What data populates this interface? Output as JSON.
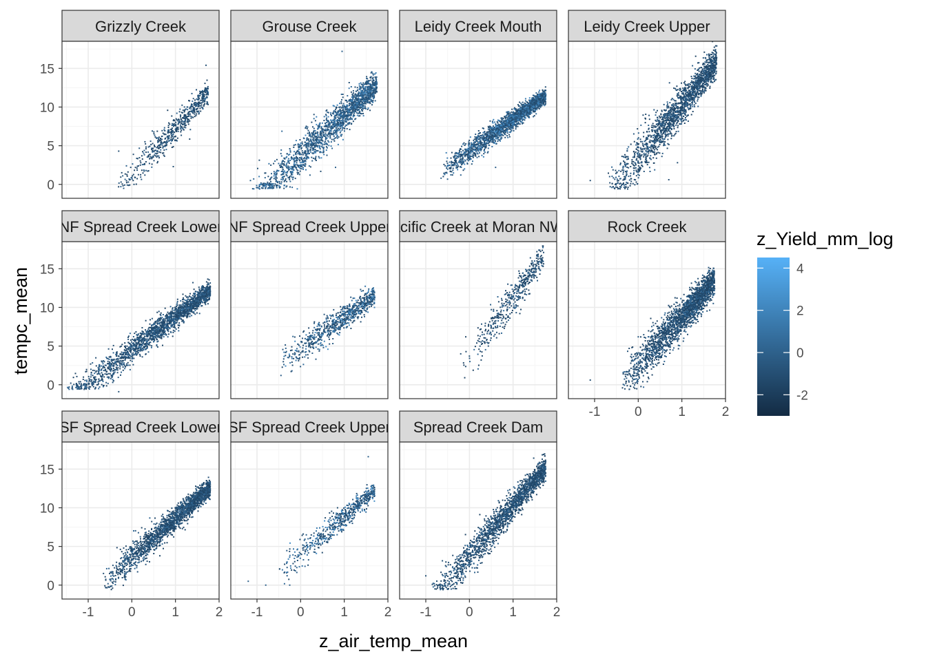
{
  "chart_data": {
    "type": "scatter",
    "facet_layout": "wrap",
    "xlabel": "z_air_temp_mean",
    "ylabel": "tempc_mean",
    "xlim": [
      -1.6,
      2.0
    ],
    "ylim": [
      -1.8,
      18.5
    ],
    "x_ticks": [
      -1,
      0,
      1,
      2
    ],
    "y_ticks": [
      0,
      5,
      10,
      15
    ],
    "grid": true,
    "legend": {
      "title": "z_Yield_mm_log",
      "type": "colorbar",
      "placement": "right",
      "range": [
        -3,
        4.5
      ],
      "ticks": [
        4,
        2,
        0,
        -2
      ],
      "color_low": "#132B43",
      "color_high": "#56B1F7"
    },
    "colors": {
      "panel_border": "#333333",
      "strip_fill": "#d9d9d9",
      "grid_major": "#ebebeb",
      "grid_minor": "#f5f5f5"
    },
    "facets": [
      {
        "label": "Grizzly Creek",
        "n": 600,
        "xmin": -0.35,
        "xmax": 1.75,
        "slope": 6.0,
        "intercept": 1.3,
        "noise": 1.5,
        "cmin": -1.6,
        "cmax": 0.6,
        "outliers": [
          [
            -0.3,
            4.3
          ],
          [
            0.05,
            0.0
          ],
          [
            0.3,
            1.2
          ],
          [
            0.95,
            2.3
          ],
          [
            1.7,
            15.4
          ]
        ]
      },
      {
        "label": "Grouse Creek",
        "n": 1800,
        "xmin": -1.15,
        "xmax": 1.75,
        "slope": 5.3,
        "intercept": 3.7,
        "noise": 1.8,
        "cmin": -1.0,
        "cmax": 2.2,
        "outliers": [
          [
            -1.15,
            0.5
          ],
          [
            0.95,
            17.2
          ],
          [
            0.8,
            2.2
          ]
        ]
      },
      {
        "label": "Leidy Creek Mouth",
        "n": 2200,
        "xmin": -0.65,
        "xmax": 1.75,
        "slope": 4.1,
        "intercept": 4.3,
        "noise": 1.0,
        "cmin": -1.3,
        "cmax": 2.6,
        "outliers": [
          [
            -0.65,
            0.8
          ],
          [
            0.6,
            2.2
          ]
        ]
      },
      {
        "label": "Leidy Creek Upper",
        "n": 1800,
        "xmin": -0.7,
        "xmax": 1.8,
        "slope": 7.0,
        "intercept": 3.3,
        "noise": 2.0,
        "cmin": -1.6,
        "cmax": 0.5,
        "outliers": [
          [
            -1.1,
            0.5
          ],
          [
            -0.65,
            0.2
          ],
          [
            0.7,
            0.6
          ],
          [
            0.9,
            2.8
          ],
          [
            1.8,
            17.9
          ]
        ]
      },
      {
        "label": "NF Spread Creek Lower",
        "n": 2000,
        "xmin": -1.5,
        "xmax": 1.8,
        "slope": 4.3,
        "intercept": 4.5,
        "noise": 1.3,
        "cmin": -1.5,
        "cmax": 0.9,
        "outliers": [
          [
            -1.4,
            0.2
          ],
          [
            -1.2,
            -0.3
          ],
          [
            -0.3,
            -0.9
          ],
          [
            1.4,
            13.2
          ]
        ]
      },
      {
        "label": "NF Spread Creek Upper",
        "n": 800,
        "xmin": -0.5,
        "xmax": 1.7,
        "slope": 4.0,
        "intercept": 4.7,
        "noise": 1.3,
        "cmin": -1.3,
        "cmax": 2.6,
        "outliers": [
          [
            -0.45,
            1.2
          ],
          [
            -0.2,
            1.8
          ],
          [
            0.35,
            3.3
          ],
          [
            1.7,
            11.3
          ]
        ]
      },
      {
        "label": "Pacific Creek at Moran NWS",
        "n": 450,
        "xmin": -0.2,
        "xmax": 1.7,
        "slope": 7.7,
        "intercept": 3.5,
        "noise": 1.8,
        "cmin": -1.6,
        "cmax": 0.6,
        "outliers": [
          [
            -0.2,
            4.0
          ],
          [
            0.0,
            3.7
          ],
          [
            1.7,
            17.1
          ]
        ]
      },
      {
        "label": "Rock Creek",
        "n": 2200,
        "xmin": -0.4,
        "xmax": 1.75,
        "slope": 6.3,
        "intercept": 2.4,
        "noise": 1.9,
        "cmin": -1.6,
        "cmax": 0.6,
        "outliers": [
          [
            -1.1,
            0.6
          ],
          [
            1.7,
            14.2
          ]
        ]
      },
      {
        "label": "SF Spread Creek Lower",
        "n": 2000,
        "xmin": -0.65,
        "xmax": 1.8,
        "slope": 5.0,
        "intercept": 3.6,
        "noise": 1.3,
        "cmin": -1.6,
        "cmax": 0.6,
        "outliers": [
          [
            -0.6,
            -0.3
          ],
          [
            -0.65,
            1.5
          ]
        ]
      },
      {
        "label": "SF Spread Creek Upper",
        "n": 600,
        "xmin": -0.55,
        "xmax": 1.7,
        "slope": 4.8,
        "intercept": 4.0,
        "noise": 1.2,
        "cmin": -1.2,
        "cmax": 2.6,
        "outliers": [
          [
            -1.2,
            0.5
          ],
          [
            -0.8,
            0.0
          ],
          [
            -0.25,
            0.0
          ],
          [
            1.55,
            16.6
          ]
        ]
      },
      {
        "label": "Spread Creek Dam",
        "n": 1800,
        "xmin": -0.85,
        "xmax": 1.75,
        "slope": 6.5,
        "intercept": 3.8,
        "noise": 1.6,
        "cmin": -1.6,
        "cmax": 0.6,
        "outliers": [
          [
            -0.85,
            0.1
          ],
          [
            -1.0,
            1.2
          ],
          [
            1.7,
            16.9
          ]
        ]
      }
    ]
  }
}
